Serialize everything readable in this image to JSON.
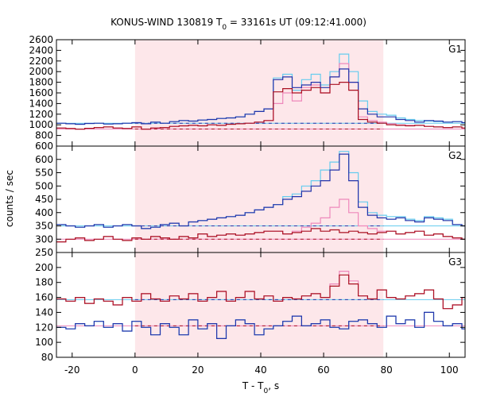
{
  "chart_data": {
    "type": "line",
    "title": "KONUS-WIND 130819 T",
    "title_sub": "0",
    "title_rest": " = 33161s UT (09:12:41.000)",
    "xlabel": "T - T",
    "xlabel_sub": "0",
    "xlabel_rest": ", s",
    "ylabel": "counts / sec",
    "xlim": [
      -25,
      105
    ],
    "x_ticks": [
      -20,
      0,
      20,
      40,
      60,
      80,
      100
    ],
    "highlight_interval": [
      0,
      79
    ],
    "bin_width": 3,
    "bins_start": -25,
    "panels": [
      {
        "label": "G1",
        "ylim": [
          600,
          2600
        ],
        "y_ticks": [
          600,
          800,
          1000,
          1200,
          1400,
          1600,
          1800,
          2000,
          2200,
          2400,
          2600
        ],
        "fit_total": 1030,
        "fit_bg": 1030,
        "fit_bg2": 920,
        "series": [
          {
            "name": "",
            "color": "#2233aa",
            "values": [
              1030,
              1020,
              1010,
              1025,
              1030,
              1015,
              1020,
              1030,
              1040,
              1020,
              1050,
              1030,
              1060,
              1080,
              1070,
              1090,
              1100,
              1120,
              1130,
              1150,
              1200,
              1250,
              1300,
              1850,
              1900,
              1700,
              1750,
              1800,
              1700,
              1900,
              2050,
              1800,
              1300,
              1200,
              1150,
              1150,
              1100,
              1080,
              1050,
              1080,
              1070,
              1050,
              1060,
              1040,
              1030,
              1040,
              1020,
              1030,
              1020,
              1010
            ]
          },
          {
            "name": "",
            "color": "#aa1122",
            "values": [
              940,
              930,
              920,
              935,
              950,
              960,
              940,
              930,
              960,
              920,
              940,
              950,
              970,
              980,
              990,
              980,
              1000,
              990,
              1010,
              1020,
              1030,
              1050,
              1080,
              1620,
              1680,
              1600,
              1650,
              1700,
              1600,
              1760,
              1800,
              1650,
              1100,
              1050,
              1030,
              1000,
              990,
              980,
              990,
              970,
              960,
              950,
              960,
              940,
              930,
              920,
              940,
              930,
              920,
              910
            ]
          },
          {
            "name": "",
            "color": "#66ccee",
            "values": [
              1030,
              1020,
              1010,
              1025,
              1030,
              1015,
              1020,
              1030,
              1040,
              1020,
              1050,
              1030,
              1060,
              1080,
              1070,
              1090,
              1100,
              1120,
              1130,
              1150,
              1200,
              1250,
              1300,
              1880,
              1950,
              1650,
              1850,
              1950,
              1750,
              2000,
              2330,
              2000,
              1450,
              1250,
              1200,
              1180,
              1130,
              1100,
              1080,
              1070,
              1060,
              1050,
              1060,
              1040,
              1030,
              1040,
              1020,
              1030,
              1020,
              1010
            ]
          },
          {
            "name": "",
            "color": "#ee88bb",
            "values": [
              940,
              930,
              920,
              935,
              950,
              960,
              940,
              930,
              960,
              920,
              940,
              950,
              970,
              980,
              990,
              980,
              1000,
              990,
              1010,
              1020,
              1030,
              1050,
              1080,
              1400,
              1600,
              1450,
              1700,
              1750,
              1600,
              1900,
              2150,
              1800,
              1150,
              1080,
              1050,
              1020,
              1000,
              990,
              990,
              970,
              960,
              950,
              960,
              940,
              930,
              920,
              940,
              930,
              920,
              910
            ]
          }
        ]
      },
      {
        "label": "G2",
        "ylim": [
          250,
          650
        ],
        "y_ticks": [
          250,
          300,
          350,
          400,
          450,
          500,
          550,
          600
        ],
        "fit_total": 350,
        "fit_bg": 350,
        "fit_bg2": 300,
        "series": [
          {
            "name": "",
            "color": "#2233aa",
            "values": [
              355,
              350,
              345,
              350,
              355,
              345,
              350,
              355,
              350,
              340,
              345,
              355,
              360,
              350,
              365,
              370,
              375,
              380,
              385,
              390,
              400,
              410,
              420,
              430,
              450,
              460,
              480,
              500,
              520,
              560,
              620,
              520,
              420,
              390,
              380,
              375,
              380,
              370,
              365,
              380,
              375,
              370,
              355,
              350,
              345,
              340,
              355,
              350,
              345,
              340
            ]
          },
          {
            "name": "",
            "color": "#aa1122",
            "values": [
              290,
              300,
              305,
              295,
              300,
              310,
              300,
              295,
              305,
              300,
              310,
              305,
              300,
              310,
              305,
              320,
              310,
              315,
              320,
              315,
              320,
              325,
              330,
              330,
              320,
              325,
              330,
              340,
              330,
              335,
              325,
              330,
              325,
              320,
              325,
              330,
              320,
              325,
              330,
              315,
              320,
              310,
              305,
              300,
              305,
              295,
              300,
              305,
              300,
              295
            ]
          },
          {
            "name": "",
            "color": "#66ccee",
            "values": [
              355,
              350,
              345,
              350,
              355,
              345,
              350,
              355,
              350,
              340,
              345,
              355,
              360,
              350,
              365,
              370,
              375,
              380,
              385,
              390,
              400,
              410,
              420,
              430,
              460,
              470,
              500,
              520,
              560,
              590,
              630,
              550,
              440,
              400,
              390,
              385,
              385,
              375,
              370,
              385,
              380,
              375,
              355,
              350,
              345,
              340,
              355,
              350,
              345,
              340
            ]
          },
          {
            "name": "",
            "color": "#ee88bb",
            "values": [
              290,
              300,
              305,
              295,
              300,
              310,
              300,
              295,
              305,
              300,
              310,
              305,
              300,
              310,
              305,
              320,
              310,
              315,
              320,
              315,
              320,
              325,
              330,
              330,
              320,
              330,
              345,
              360,
              380,
              420,
              450,
              400,
              350,
              340,
              330,
              330,
              320,
              325,
              330,
              315,
              320,
              310,
              305,
              300,
              305,
              295,
              300,
              305,
              300,
              295
            ]
          }
        ]
      },
      {
        "label": "G3",
        "ylim": [
          80,
          220
        ],
        "y_ticks": [
          80,
          100,
          120,
          140,
          160,
          180,
          200
        ],
        "fit_total": 157,
        "fit_bg": 157,
        "fit_bg2": 122,
        "series": [
          {
            "name": "",
            "color": "#2233aa",
            "values": [
              120,
              118,
              125,
              122,
              128,
              120,
              125,
              115,
              128,
              120,
              110,
              125,
              120,
              110,
              130,
              118,
              125,
              105,
              122,
              130,
              125,
              110,
              118,
              122,
              128,
              135,
              122,
              125,
              130,
              120,
              118,
              128,
              130,
              125,
              120,
              135,
              125,
              130,
              120,
              140,
              128,
              122,
              125,
              118,
              128,
              120,
              115,
              125,
              118,
              122
            ]
          },
          {
            "name": "",
            "color": "#aa1122",
            "values": [
              158,
              155,
              160,
              152,
              158,
              155,
              150,
              160,
              155,
              165,
              158,
              155,
              162,
              158,
              165,
              155,
              160,
              168,
              155,
              160,
              168,
              158,
              162,
              155,
              160,
              158,
              162,
              165,
              160,
              175,
              190,
              178,
              162,
              158,
              170,
              160,
              158,
              162,
              165,
              170,
              158,
              145,
              150,
              160,
              155,
              165,
              160,
              155,
              150,
              162
            ]
          },
          {
            "name": "",
            "color": "#66ccee",
            "values": [
              120,
              118,
              125,
              122,
              128,
              120,
              125,
              115,
              128,
              120,
              110,
              125,
              120,
              110,
              130,
              118,
              125,
              105,
              122,
              130,
              125,
              110,
              118,
              122,
              128,
              135,
              122,
              125,
              130,
              120,
              118,
              128,
              130,
              125,
              120,
              135,
              125,
              130,
              120,
              140,
              128,
              122,
              125,
              118,
              128,
              120,
              115,
              125,
              118,
              122
            ]
          },
          {
            "name": "",
            "color": "#ee88bb",
            "values": [
              158,
              155,
              160,
              152,
              158,
              155,
              150,
              160,
              155,
              165,
              158,
              155,
              162,
              158,
              165,
              155,
              160,
              168,
              155,
              160,
              168,
              158,
              162,
              155,
              160,
              158,
              162,
              165,
              160,
              178,
              195,
              182,
              162,
              158,
              170,
              160,
              158,
              162,
              165,
              170,
              158,
              145,
              150,
              160,
              155,
              165,
              160,
              155,
              150,
              162
            ]
          }
        ]
      }
    ],
    "colors": {
      "highlight": "#fde7ea",
      "blue": "#2233aa",
      "red": "#aa1122",
      "light_blue": "#66ccee",
      "pink": "#ee88bb"
    }
  }
}
